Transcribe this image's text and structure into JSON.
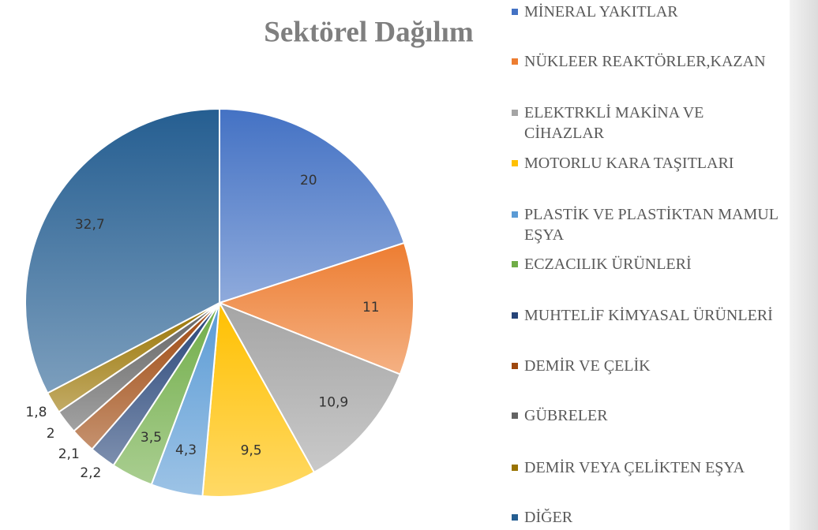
{
  "chart_data": {
    "type": "pie",
    "title": "Sektörel Dağılım",
    "categories": [
      "MİNERAL YAKITLAR",
      "NÜKLEER REAKTÖRLER,KAZAN",
      "ELEKTRKLİ MAKİNA VE CİHAZLAR",
      "MOTORLU KARA TAŞITLARI",
      "PLASTİK VE PLASTİKTAN MAMUL EŞYA",
      "ECZACILIK ÜRÜNLERİ",
      "MUHTELİF KİMYASAL ÜRÜNLERİ",
      "DEMİR VE ÇELİK",
      "GÜBRELER",
      "DEMİR VEYA ÇELİKTEN EŞYA",
      "DİĞER"
    ],
    "values": [
      20,
      11,
      10.9,
      9.5,
      4.3,
      3.5,
      2.2,
      2.1,
      2,
      1.8,
      32.7
    ],
    "value_labels": [
      "20",
      "11",
      "10,9",
      "9,5",
      "4,3",
      "3,5",
      "2,2",
      "2,1",
      "2",
      "1,8",
      "32,7"
    ],
    "colors": [
      "#4472c4",
      "#ed7d31",
      "#a5a5a5",
      "#ffc000",
      "#5b9bd5",
      "#70ad47",
      "#264478",
      "#9e480e",
      "#636363",
      "#997300",
      "#255e91"
    ],
    "legend": "right"
  }
}
